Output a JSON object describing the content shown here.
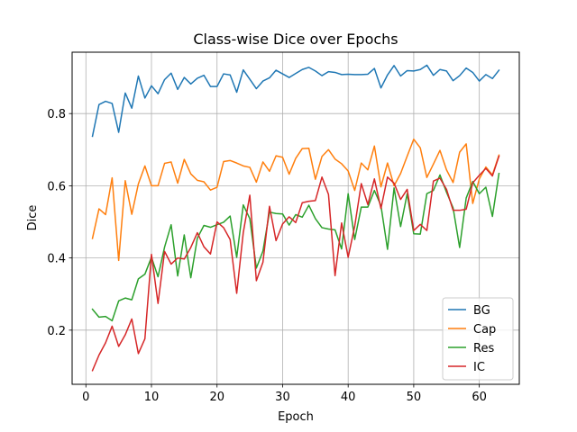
{
  "chart_data": {
    "type": "line",
    "title": "Class-wise Dice over Epochs",
    "xlabel": "Epoch",
    "ylabel": "Dice",
    "xlim": [
      -2.1,
      66.1
    ],
    "ylim": [
      0.05,
      0.97
    ],
    "xticks": [
      0,
      10,
      20,
      30,
      40,
      50,
      60
    ],
    "yticks": [
      0.2,
      0.4,
      0.6,
      0.8
    ],
    "ytick_labels": [
      "0.2",
      "0.4",
      "0.6",
      "0.8"
    ],
    "grid": true,
    "legend_position": "lower-right",
    "x": [
      1,
      2,
      3,
      4,
      5,
      6,
      7,
      8,
      9,
      10,
      11,
      12,
      13,
      14,
      15,
      16,
      17,
      18,
      19,
      20,
      21,
      22,
      23,
      24,
      25,
      26,
      27,
      28,
      29,
      30,
      31,
      32,
      33,
      34,
      35,
      36,
      37,
      38,
      39,
      40,
      41,
      42,
      43,
      44,
      45,
      46,
      47,
      48,
      49,
      50,
      51,
      52,
      53,
      54,
      55,
      56,
      57,
      58,
      59,
      60,
      61,
      62,
      63
    ],
    "series": [
      {
        "name": "BG",
        "color": "#1f77b4",
        "values": [
          0.737,
          0.825,
          0.834,
          0.828,
          0.748,
          0.857,
          0.815,
          0.904,
          0.843,
          0.877,
          0.855,
          0.894,
          0.912,
          0.867,
          0.9,
          0.882,
          0.898,
          0.906,
          0.875,
          0.875,
          0.91,
          0.907,
          0.859,
          0.921,
          0.895,
          0.869,
          0.89,
          0.899,
          0.92,
          0.91,
          0.9,
          0.911,
          0.922,
          0.928,
          0.918,
          0.905,
          0.916,
          0.914,
          0.908,
          0.909,
          0.908,
          0.908,
          0.909,
          0.925,
          0.871,
          0.907,
          0.933,
          0.904,
          0.919,
          0.918,
          0.922,
          0.934,
          0.906,
          0.922,
          0.918,
          0.891,
          0.905,
          0.926,
          0.914,
          0.89,
          0.908,
          0.897,
          0.92
        ]
      },
      {
        "name": "Cap",
        "color": "#ff7f0e",
        "values": [
          0.454,
          0.536,
          0.52,
          0.622,
          0.393,
          0.614,
          0.521,
          0.605,
          0.655,
          0.6,
          0.6,
          0.662,
          0.666,
          0.607,
          0.673,
          0.633,
          0.615,
          0.611,
          0.588,
          0.596,
          0.667,
          0.67,
          0.663,
          0.655,
          0.651,
          0.61,
          0.666,
          0.64,
          0.683,
          0.679,
          0.632,
          0.676,
          0.703,
          0.704,
          0.618,
          0.681,
          0.7,
          0.674,
          0.661,
          0.641,
          0.587,
          0.663,
          0.644,
          0.71,
          0.597,
          0.663,
          0.6,
          0.634,
          0.682,
          0.729,
          0.705,
          0.623,
          0.66,
          0.698,
          0.644,
          0.609,
          0.693,
          0.716,
          0.551,
          0.619,
          0.652,
          0.63,
          0.685
        ]
      },
      {
        "name": "Res",
        "color": "#2ca02c",
        "values": [
          0.258,
          0.236,
          0.238,
          0.226,
          0.281,
          0.289,
          0.284,
          0.342,
          0.355,
          0.402,
          0.348,
          0.43,
          0.492,
          0.35,
          0.464,
          0.345,
          0.455,
          0.49,
          0.485,
          0.492,
          0.499,
          0.516,
          0.402,
          0.547,
          0.509,
          0.372,
          0.419,
          0.527,
          0.523,
          0.522,
          0.491,
          0.52,
          0.513,
          0.546,
          0.509,
          0.484,
          0.48,
          0.478,
          0.425,
          0.578,
          0.451,
          0.541,
          0.541,
          0.587,
          0.545,
          0.424,
          0.594,
          0.487,
          0.578,
          0.467,
          0.466,
          0.578,
          0.587,
          0.63,
          0.582,
          0.539,
          0.429,
          0.566,
          0.612,
          0.578,
          0.596,
          0.515,
          0.634
        ]
      },
      {
        "name": "IC",
        "color": "#d62728",
        "values": [
          0.088,
          0.131,
          0.165,
          0.211,
          0.155,
          0.187,
          0.231,
          0.135,
          0.176,
          0.41,
          0.274,
          0.418,
          0.383,
          0.4,
          0.397,
          0.429,
          0.47,
          0.431,
          0.411,
          0.5,
          0.484,
          0.451,
          0.302,
          0.47,
          0.574,
          0.337,
          0.388,
          0.543,
          0.448,
          0.494,
          0.514,
          0.498,
          0.553,
          0.557,
          0.559,
          0.624,
          0.576,
          0.351,
          0.497,
          0.402,
          0.488,
          0.606,
          0.548,
          0.619,
          0.537,
          0.624,
          0.607,
          0.562,
          0.59,
          0.476,
          0.493,
          0.476,
          0.613,
          0.621,
          0.59,
          0.532,
          0.532,
          0.535,
          0.608,
          0.629,
          0.648,
          0.627,
          0.682
        ]
      }
    ]
  }
}
